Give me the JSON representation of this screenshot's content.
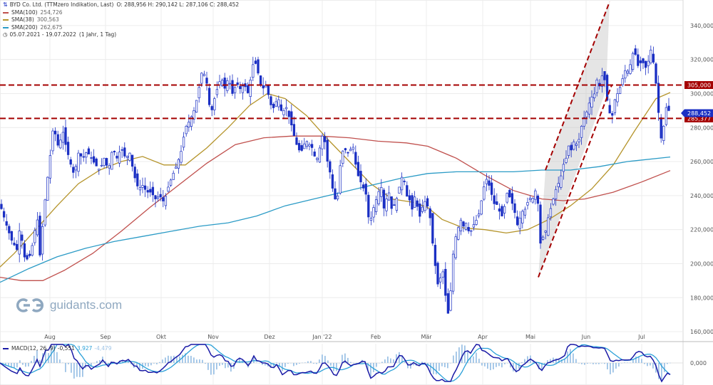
{
  "legend": {
    "title": "BYD Co. Ltd. (TTMzero Indikation, Last)",
    "ohlc": "O: 288,956  H: 290,142  L: 287,106  C: 288,452",
    "sma100_label": "SMA(100)",
    "sma100_value": "254,726",
    "sma38_label": "SMA(38)",
    "sma38_value": "300,563",
    "sma200_label": "SMA(200)",
    "sma200_value": "262,675",
    "range": "05.07.2021 - 19.07.2022",
    "interval": "(1 Jahr, 1 Tag)"
  },
  "watermark": "guidants.com",
  "macd": {
    "label": "MACD(12, 26, 9)",
    "v1": "-0,551",
    "v2": "3,927",
    "v3": "-4,479",
    "zero_label": "0,000"
  },
  "colors": {
    "candle": "#1a2fc4",
    "sma100": "#c0504d",
    "sma38": "#b5942b",
    "sma200": "#2b9bc6",
    "hline": "#a40000",
    "channel": "#a40000",
    "macd": "#1a1aa6",
    "signal": "#2aa0d8",
    "hist": "#9ec3e6",
    "price_flag": "#1a2fc4"
  },
  "chart_data": {
    "type": "candlestick",
    "title": "BYD Co. Ltd. (TTMzero Indikation, Last)",
    "x_tick_labels": [
      "Aug",
      "Sep",
      "Okt",
      "Nov",
      "Dez",
      "Jan '22",
      "Feb",
      "Mär",
      "Apr",
      "Mai",
      "Jun",
      "Jul"
    ],
    "y_tick_labels": [
      "160,000",
      "180,000",
      "200,000",
      "220,000",
      "240,000",
      "260,000",
      "280,000",
      "300,000",
      "320,000",
      "340,000"
    ],
    "ylim": [
      155,
      355
    ],
    "horizontal_lines": [
      {
        "value": 305.0,
        "label": "305,000"
      },
      {
        "value": 285.377,
        "label": "285,377"
      }
    ],
    "last_price": {
      "value": 288.452,
      "label": "288,452"
    },
    "close_path": [
      [
        0,
        235
      ],
      [
        8,
        224
      ],
      [
        16,
        214
      ],
      [
        24,
        208
      ],
      [
        28,
        222
      ],
      [
        34,
        204
      ],
      [
        40,
        202
      ],
      [
        46,
        212
      ],
      [
        52,
        228
      ],
      [
        56,
        205
      ],
      [
        62,
        233
      ],
      [
        66,
        248
      ],
      [
        70,
        262
      ],
      [
        74,
        278
      ],
      [
        78,
        276
      ],
      [
        82,
        268
      ],
      [
        88,
        278
      ],
      [
        92,
        270
      ],
      [
        98,
        260
      ],
      [
        104,
        252
      ],
      [
        110,
        265
      ],
      [
        116,
        262
      ],
      [
        122,
        266
      ],
      [
        128,
        262
      ],
      [
        134,
        258
      ],
      [
        140,
        255
      ],
      [
        146,
        262
      ],
      [
        152,
        255
      ],
      [
        158,
        268
      ],
      [
        164,
        262
      ],
      [
        170,
        268
      ],
      [
        176,
        262
      ],
      [
        182,
        265
      ],
      [
        188,
        252
      ],
      [
        194,
        244
      ],
      [
        200,
        246
      ],
      [
        206,
        242
      ],
      [
        212,
        242
      ],
      [
        218,
        238
      ],
      [
        224,
        240
      ],
      [
        230,
        236
      ],
      [
        236,
        245
      ],
      [
        242,
        252
      ],
      [
        248,
        258
      ],
      [
        254,
        266
      ],
      [
        260,
        280
      ],
      [
        266,
        284
      ],
      [
        272,
        290
      ],
      [
        278,
        300
      ],
      [
        282,
        312
      ],
      [
        286,
        312
      ],
      [
        290,
        306
      ],
      [
        294,
        292
      ],
      [
        298,
        290
      ],
      [
        302,
        300
      ],
      [
        306,
        304
      ],
      [
        310,
        310
      ],
      [
        316,
        302
      ],
      [
        320,
        310
      ],
      [
        326,
        300
      ],
      [
        332,
        306
      ],
      [
        338,
        302
      ],
      [
        342,
        306
      ],
      [
        348,
        300
      ],
      [
        352,
        310
      ],
      [
        356,
        320
      ],
      [
        360,
        316
      ],
      [
        364,
        308
      ],
      [
        368,
        302
      ],
      [
        372,
        306
      ],
      [
        376,
        300
      ],
      [
        382,
        290
      ],
      [
        386,
        294
      ],
      [
        390,
        298
      ],
      [
        394,
        290
      ],
      [
        398,
        290
      ],
      [
        402,
        292
      ],
      [
        406,
        285
      ],
      [
        410,
        280
      ],
      [
        414,
        272
      ],
      [
        418,
        268
      ],
      [
        422,
        265
      ],
      [
        426,
        270
      ],
      [
        430,
        272
      ],
      [
        434,
        270
      ],
      [
        438,
        268
      ],
      [
        442,
        262
      ],
      [
        446,
        262
      ],
      [
        450,
        272
      ],
      [
        454,
        278
      ],
      [
        458,
        262
      ],
      [
        462,
        256
      ],
      [
        466,
        245
      ],
      [
        470,
        238
      ],
      [
        474,
        240
      ],
      [
        478,
        262
      ],
      [
        482,
        268
      ],
      [
        486,
        266
      ],
      [
        490,
        264
      ],
      [
        494,
        272
      ],
      [
        498,
        260
      ],
      [
        502,
        252
      ],
      [
        506,
        248
      ],
      [
        510,
        244
      ],
      [
        514,
        240
      ],
      [
        518,
        222
      ],
      [
        522,
        230
      ],
      [
        526,
        236
      ],
      [
        530,
        240
      ],
      [
        534,
        248
      ],
      [
        538,
        232
      ],
      [
        542,
        238
      ],
      [
        546,
        242
      ],
      [
        550,
        230
      ],
      [
        554,
        236
      ],
      [
        558,
        240
      ],
      [
        562,
        250
      ],
      [
        566,
        252
      ],
      [
        570,
        240
      ],
      [
        574,
        238
      ],
      [
        578,
        232
      ],
      [
        582,
        240
      ],
      [
        586,
        232
      ],
      [
        590,
        226
      ],
      [
        594,
        238
      ],
      [
        598,
        235
      ],
      [
        602,
        232
      ],
      [
        606,
        215
      ],
      [
        610,
        200
      ],
      [
        614,
        188
      ],
      [
        618,
        192
      ],
      [
        622,
        196
      ],
      [
        626,
        175
      ],
      [
        630,
        168
      ],
      [
        634,
        200
      ],
      [
        638,
        214
      ],
      [
        642,
        220
      ],
      [
        646,
        226
      ],
      [
        650,
        222
      ],
      [
        654,
        224
      ],
      [
        658,
        218
      ],
      [
        662,
        220
      ],
      [
        666,
        225
      ],
      [
        670,
        226
      ],
      [
        674,
        234
      ],
      [
        678,
        244
      ],
      [
        682,
        250
      ],
      [
        686,
        246
      ],
      [
        690,
        240
      ],
      [
        694,
        234
      ],
      [
        698,
        235
      ],
      [
        702,
        228
      ],
      [
        706,
        228
      ],
      [
        710,
        242
      ],
      [
        714,
        240
      ],
      [
        718,
        236
      ],
      [
        722,
        230
      ],
      [
        726,
        222
      ],
      [
        730,
        228
      ],
      [
        734,
        232
      ],
      [
        738,
        232
      ],
      [
        742,
        240
      ],
      [
        746,
        236
      ],
      [
        750,
        244
      ],
      [
        754,
        238
      ],
      [
        758,
        212
      ],
      [
        762,
        216
      ],
      [
        766,
        220
      ],
      [
        770,
        230
      ],
      [
        774,
        234
      ],
      [
        778,
        242
      ],
      [
        782,
        246
      ],
      [
        786,
        250
      ],
      [
        790,
        258
      ],
      [
        794,
        262
      ],
      [
        798,
        270
      ],
      [
        802,
        266
      ],
      [
        806,
        274
      ],
      [
        810,
        268
      ],
      [
        814,
        278
      ],
      [
        818,
        285
      ],
      [
        822,
        288
      ],
      [
        826,
        294
      ],
      [
        830,
        298
      ],
      [
        834,
        300
      ],
      [
        838,
        310
      ],
      [
        842,
        302
      ],
      [
        846,
        316
      ],
      [
        850,
        300
      ],
      [
        854,
        290
      ],
      [
        858,
        285
      ],
      [
        862,
        296
      ],
      [
        866,
        300
      ],
      [
        870,
        304
      ],
      [
        874,
        310
      ],
      [
        878,
        315
      ],
      [
        882,
        312
      ],
      [
        886,
        322
      ],
      [
        890,
        326
      ],
      [
        894,
        316
      ],
      [
        898,
        318
      ],
      [
        902,
        318
      ],
      [
        906,
        315
      ],
      [
        910,
        320
      ],
      [
        914,
        328
      ],
      [
        918,
        312
      ],
      [
        922,
        300
      ],
      [
        926,
        272
      ],
      [
        930,
        278
      ],
      [
        934,
        292
      ],
      [
        938,
        290
      ],
      [
        940,
        288.452
      ]
    ],
    "series": [
      {
        "name": "SMA(100)",
        "value": 254.726,
        "points": [
          [
            0,
            192
          ],
          [
            30,
            190
          ],
          [
            60,
            190
          ],
          [
            90,
            196
          ],
          [
            130,
            206
          ],
          [
            170,
            219
          ],
          [
            210,
            233
          ],
          [
            250,
            246
          ],
          [
            290,
            259
          ],
          [
            330,
            270
          ],
          [
            370,
            274
          ],
          [
            410,
            275
          ],
          [
            450,
            275
          ],
          [
            490,
            274
          ],
          [
            530,
            272
          ],
          [
            570,
            271
          ],
          [
            600,
            269
          ],
          [
            640,
            262
          ],
          [
            680,
            252
          ],
          [
            720,
            243
          ],
          [
            760,
            238
          ],
          [
            790,
            237
          ],
          [
            820,
            238
          ],
          [
            860,
            242
          ],
          [
            900,
            248
          ],
          [
            940,
            254.7
          ]
        ]
      },
      {
        "name": "SMA(38)",
        "value": 300.563,
        "points": [
          [
            0,
            198
          ],
          [
            20,
            206
          ],
          [
            50,
            220
          ],
          [
            80,
            234
          ],
          [
            110,
            247
          ],
          [
            140,
            255
          ],
          [
            170,
            260
          ],
          [
            200,
            263
          ],
          [
            230,
            258
          ],
          [
            260,
            258
          ],
          [
            290,
            268
          ],
          [
            320,
            280
          ],
          [
            350,
            293
          ],
          [
            375,
            300
          ],
          [
            400,
            297
          ],
          [
            430,
            287
          ],
          [
            460,
            273
          ],
          [
            490,
            260
          ],
          [
            520,
            247
          ],
          [
            550,
            238
          ],
          [
            580,
            236
          ],
          [
            600,
            233
          ],
          [
            620,
            226
          ],
          [
            650,
            221
          ],
          [
            680,
            220
          ],
          [
            710,
            218
          ],
          [
            740,
            220
          ],
          [
            770,
            226
          ],
          [
            800,
            234
          ],
          [
            830,
            244
          ],
          [
            860,
            258
          ],
          [
            890,
            278
          ],
          [
            920,
            297
          ],
          [
            940,
            300.6
          ]
        ]
      },
      {
        "name": "SMA(200)",
        "value": 262.675,
        "points": [
          [
            0,
            189
          ],
          [
            40,
            197
          ],
          [
            80,
            204
          ],
          [
            120,
            209
          ],
          [
            160,
            213
          ],
          [
            200,
            216
          ],
          [
            240,
            219
          ],
          [
            280,
            222
          ],
          [
            320,
            224
          ],
          [
            360,
            228
          ],
          [
            400,
            234
          ],
          [
            440,
            238
          ],
          [
            480,
            242
          ],
          [
            520,
            246
          ],
          [
            560,
            250
          ],
          [
            600,
            253
          ],
          [
            640,
            254
          ],
          [
            680,
            254
          ],
          [
            720,
            254
          ],
          [
            760,
            255
          ],
          [
            800,
            255
          ],
          [
            840,
            257
          ],
          [
            880,
            260
          ],
          [
            940,
            262.7
          ]
        ]
      }
    ],
    "channel": {
      "lower_start": [
        755,
        192
      ],
      "lower_end": [
        960,
        322
      ],
      "upper_start": [
        765,
        255
      ],
      "upper_end": [
        855,
        354
      ]
    }
  }
}
